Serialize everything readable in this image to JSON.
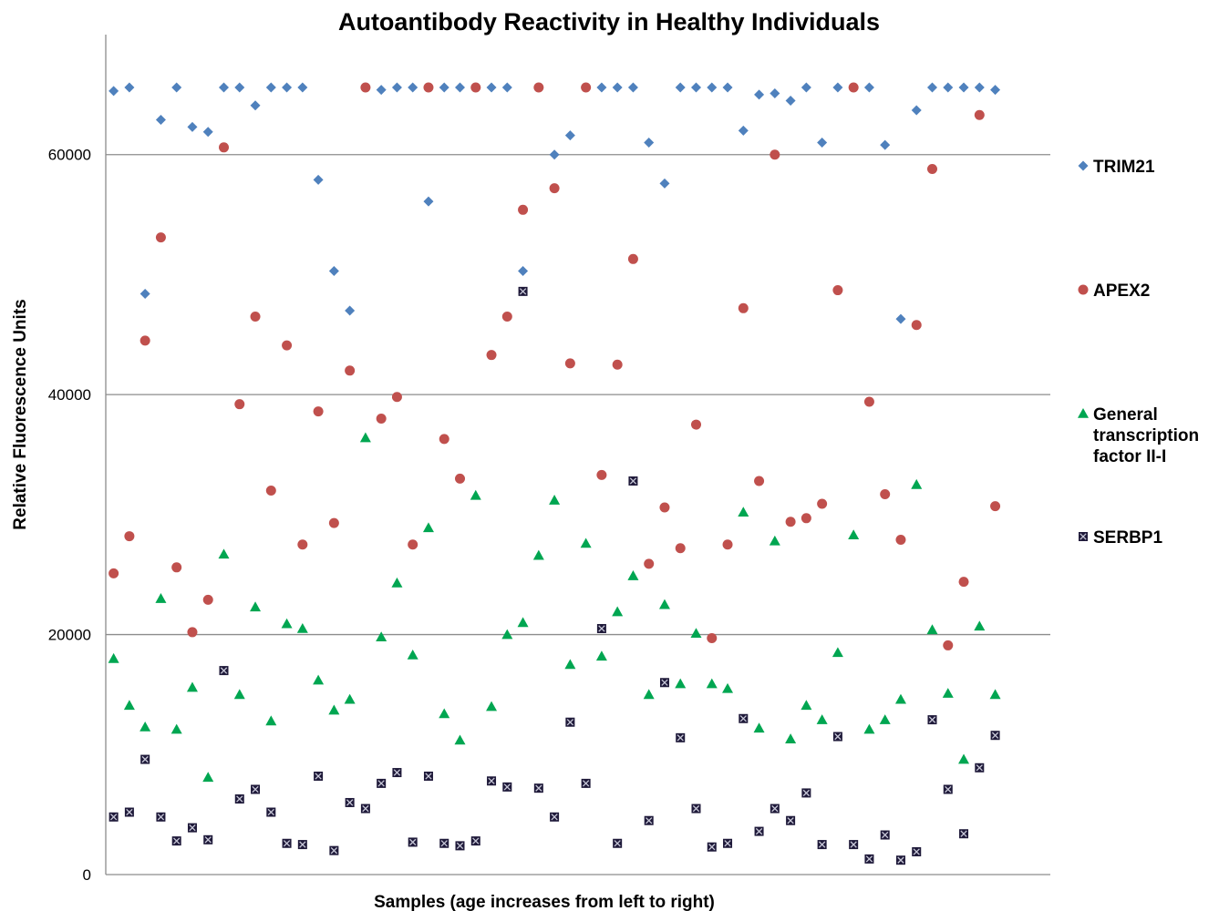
{
  "chart_data": {
    "type": "scatter",
    "title": "Autoantibody Reactivity in Healthy Individuals",
    "xlabel": "Samples (age increases from left to right)",
    "ylabel": "Relative Fluorescence Units",
    "xlim": [
      0.5,
      60.5
    ],
    "ylim": [
      0,
      70000
    ],
    "yticks": [
      0,
      20000,
      40000,
      60000
    ],
    "grid": true,
    "legend_position": "right",
    "series": [
      {
        "name": "TRIM21",
        "marker": "diamond",
        "color": "#4f81bd",
        "x": [
          1,
          2,
          3,
          4,
          5,
          6,
          7,
          8,
          9,
          10,
          11,
          12,
          13,
          14,
          15,
          16,
          17,
          18,
          19,
          20,
          21,
          22,
          23,
          24,
          25,
          26,
          27,
          28,
          29,
          30,
          31,
          32,
          33,
          34,
          35,
          36,
          37,
          38,
          39,
          40,
          41,
          42,
          43,
          44,
          45,
          46,
          47,
          48,
          49,
          50,
          51,
          52,
          53,
          54,
          55,
          56,
          57
        ],
        "values": [
          65300,
          65600,
          48400,
          62900,
          65600,
          62300,
          61900,
          65600,
          65600,
          64100,
          65600,
          65600,
          65600,
          57900,
          50300,
          47000,
          65600,
          65400,
          65600,
          65600,
          56100,
          65600,
          65600,
          65600,
          65600,
          65600,
          50300,
          65600,
          60000,
          61600,
          65600,
          65600,
          65600,
          65600,
          61000,
          57600,
          65600,
          65600,
          65600,
          65600,
          62000,
          65000,
          65100,
          64500,
          65600,
          61000,
          65600,
          65600,
          65600,
          60800,
          46300,
          63700,
          65600,
          65600,
          65600,
          65600,
          65400
        ]
      },
      {
        "name": "APEX2",
        "marker": "circle",
        "color": "#c0504d",
        "x": [
          1,
          2,
          3,
          4,
          5,
          6,
          7,
          8,
          9,
          10,
          11,
          12,
          13,
          14,
          15,
          16,
          17,
          18,
          19,
          20,
          21,
          22,
          23,
          24,
          25,
          26,
          27,
          28,
          29,
          30,
          31,
          32,
          33,
          34,
          35,
          36,
          37,
          38,
          39,
          40,
          41,
          42,
          43,
          44,
          45,
          46,
          47,
          48,
          49,
          50,
          51,
          52,
          53,
          54,
          55,
          56,
          57
        ],
        "values": [
          25100,
          28200,
          44500,
          53100,
          25600,
          20200,
          22900,
          60600,
          39200,
          46500,
          32000,
          44100,
          27500,
          38600,
          29300,
          42000,
          65600,
          38000,
          39800,
          27500,
          65600,
          36300,
          33000,
          65600,
          43300,
          46500,
          55400,
          65600,
          57200,
          42600,
          65600,
          33300,
          42500,
          51300,
          25900,
          30600,
          27200,
          37500,
          19700,
          27500,
          47200,
          32800,
          60000,
          29400,
          29700,
          30900,
          48700,
          65600,
          39400,
          31700,
          27900,
          45800,
          58800,
          19100,
          24400,
          63300,
          30700
        ]
      },
      {
        "name": "General transcription factor II-I",
        "marker": "triangle",
        "color": "#00a651",
        "x": [
          1,
          2,
          3,
          4,
          5,
          6,
          7,
          8,
          9,
          10,
          11,
          12,
          13,
          14,
          15,
          16,
          17,
          18,
          19,
          20,
          21,
          22,
          23,
          24,
          25,
          26,
          27,
          28,
          29,
          30,
          31,
          32,
          33,
          34,
          35,
          36,
          37,
          38,
          39,
          40,
          41,
          42,
          43,
          44,
          45,
          46,
          47,
          48,
          49,
          50,
          51,
          52,
          53,
          54,
          55,
          56,
          57
        ],
        "values": [
          18000,
          14100,
          12300,
          23000,
          12100,
          15600,
          8100,
          26700,
          15000,
          22300,
          12800,
          20900,
          20500,
          16200,
          13700,
          14600,
          36400,
          19800,
          24300,
          18300,
          28900,
          13400,
          11200,
          31600,
          14000,
          20000,
          21000,
          26600,
          31200,
          17500,
          27600,
          18200,
          21900,
          24900,
          15000,
          22500,
          15900,
          20100,
          15900,
          15500,
          30200,
          12200,
          27800,
          11300,
          14100,
          12900,
          18500,
          28300,
          12100,
          12900,
          14600,
          32500,
          20400,
          15100,
          9600,
          20700,
          15000
        ]
      },
      {
        "name": "SERBP1",
        "marker": "square-x",
        "color": "#1f1a3a",
        "x": [
          1,
          2,
          3,
          4,
          5,
          6,
          7,
          8,
          9,
          10,
          11,
          12,
          13,
          14,
          15,
          16,
          17,
          18,
          19,
          20,
          21,
          22,
          23,
          24,
          25,
          26,
          27,
          28,
          29,
          30,
          31,
          32,
          33,
          34,
          35,
          36,
          37,
          38,
          39,
          40,
          41,
          42,
          43,
          44,
          45,
          46,
          47,
          48,
          49,
          50,
          51,
          52,
          53,
          54,
          55,
          56,
          57
        ],
        "values": [
          4800,
          5200,
          9600,
          4800,
          2800,
          3900,
          2900,
          17000,
          6300,
          7100,
          5200,
          2600,
          2500,
          8200,
          2000,
          6000,
          5500,
          7600,
          8500,
          2700,
          8200,
          2600,
          2400,
          2800,
          7800,
          7300,
          48600,
          7200,
          4800,
          12700,
          7600,
          20500,
          2600,
          32800,
          4500,
          16000,
          11400,
          5500,
          2300,
          2600,
          13000,
          3600,
          5500,
          4500,
          6800,
          2500,
          11500,
          2500,
          1300,
          3300,
          1200,
          1900,
          12900,
          7100,
          3400,
          8900,
          11600
        ]
      }
    ],
    "legend": [
      {
        "series": 0,
        "label": "TRIM21"
      },
      {
        "series": 1,
        "label": "APEX2"
      },
      {
        "series": 2,
        "label": "General transcription factor II-I",
        "lines": [
          "General",
          "transcription",
          "factor II-I"
        ]
      },
      {
        "series": 3,
        "label": "SERBP1"
      }
    ]
  }
}
